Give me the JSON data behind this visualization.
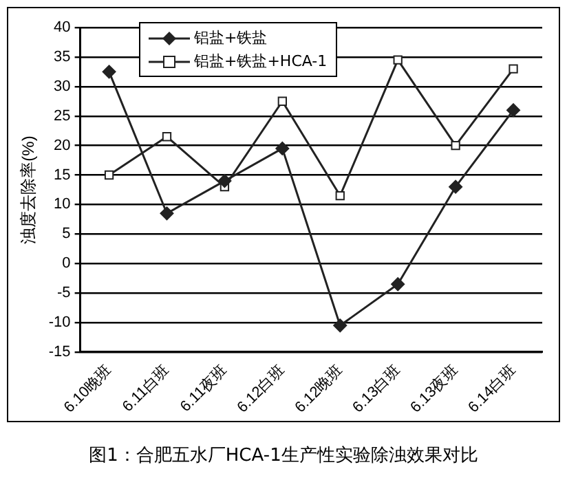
{
  "chart_data": {
    "type": "line",
    "title": "图1：合肥五水厂HCA-1生产性实验除浊效果对比",
    "ylabel": "浊度去除率(%)",
    "categories": [
      "6.10晚班",
      "6.11白班",
      "6.11夜班",
      "6.12白班",
      "6.12晚班",
      "6.13白班",
      "6.13夜班",
      "6.14白班"
    ],
    "series": [
      {
        "name": "铝盐+铁盐",
        "color": "#222222",
        "marker": "diamond",
        "values": [
          32.5,
          8.5,
          14,
          19.5,
          -10.5,
          -3.5,
          13,
          26
        ]
      },
      {
        "name": "铝盐+铁盐+HCA-1",
        "color": "#222222",
        "marker": "square",
        "values": [
          15,
          21.5,
          13,
          27.5,
          11.5,
          34.5,
          20,
          33
        ]
      }
    ],
    "ylim": [
      -15,
      40
    ],
    "yticks": [
      -15,
      -10,
      -5,
      0,
      5,
      10,
      15,
      20,
      25,
      30,
      35,
      40
    ],
    "grid": "y",
    "legend": "top left",
    "line_style": "solid"
  }
}
